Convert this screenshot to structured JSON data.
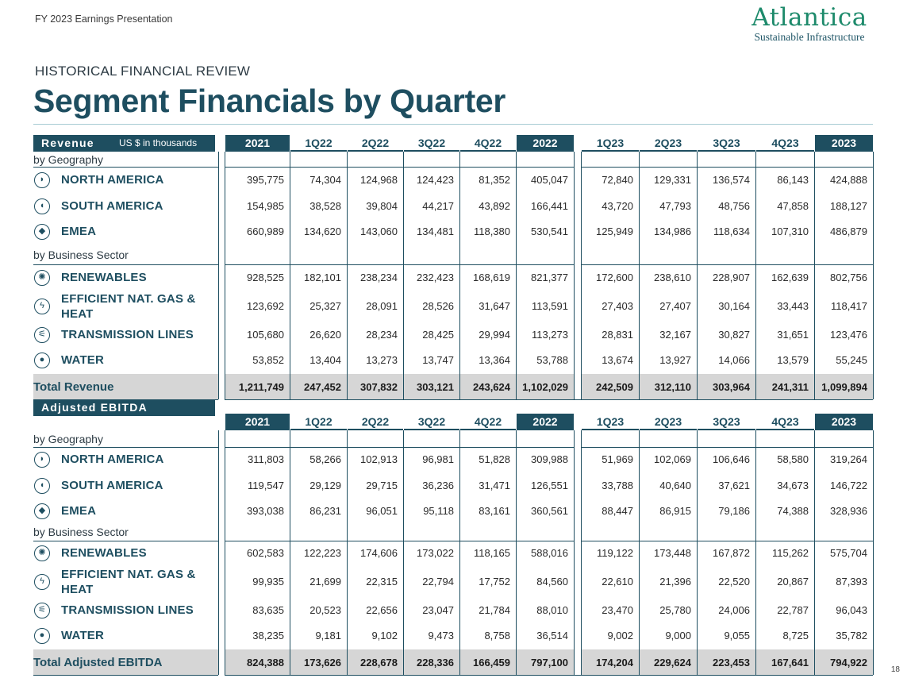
{
  "header": {
    "presentation": "FY 2023 Earnings Presentation",
    "logo_name": "Atlantica",
    "logo_tagline": "Sustainable Infrastructure",
    "subtitle": "HISTORICAL FINANCIAL REVIEW",
    "title": "Segment Financials by Quarter",
    "page_number": "18"
  },
  "columns": [
    "2021",
    "1Q22",
    "2Q22",
    "3Q22",
    "4Q22",
    "2022",
    "1Q23",
    "2Q23",
    "3Q23",
    "4Q23",
    "2023"
  ],
  "year_columns": [
    "2021",
    "2022",
    "2023"
  ],
  "sections": [
    {
      "key": "revenue",
      "title": "Revenue",
      "unit": "US $ in thousands",
      "groups": [
        {
          "label": "by Geography",
          "rows": [
            {
              "name": "NORTH AMERICA",
              "icon": "north-america-globe-icon",
              "values": [
                "395,775",
                "74,304",
                "124,968",
                "124,423",
                "81,352",
                "405,047",
                "72,840",
                "129,331",
                "136,574",
                "86,143",
                "424,888"
              ]
            },
            {
              "name": "SOUTH AMERICA",
              "icon": "south-america-globe-icon",
              "values": [
                "154,985",
                "38,528",
                "39,804",
                "44,217",
                "43,892",
                "166,441",
                "43,720",
                "47,793",
                "48,756",
                "47,858",
                "188,127"
              ]
            },
            {
              "name": "EMEA",
              "icon": "emea-globe-icon",
              "values": [
                "660,989",
                "134,620",
                "143,060",
                "134,481",
                "118,380",
                "530,541",
                "125,949",
                "134,986",
                "118,634",
                "107,310",
                "486,879"
              ]
            }
          ]
        },
        {
          "label": "by Business Sector",
          "rows": [
            {
              "name": "RENEWABLES",
              "icon": "sun-icon",
              "values": [
                "928,525",
                "182,101",
                "238,234",
                "232,423",
                "168,619",
                "821,377",
                "172,600",
                "238,610",
                "228,907",
                "162,639",
                "802,756"
              ]
            },
            {
              "name": "EFFICIENT NAT. GAS & HEAT",
              "icon": "lightning-icon",
              "values": [
                "123,692",
                "25,327",
                "28,091",
                "28,526",
                "31,647",
                "113,591",
                "27,403",
                "27,407",
                "30,164",
                "33,443",
                "118,417"
              ]
            },
            {
              "name": "TRANSMISSION LINES",
              "icon": "transmission-tower-icon",
              "values": [
                "105,680",
                "26,620",
                "28,234",
                "28,425",
                "29,994",
                "113,273",
                "28,831",
                "32,167",
                "30,827",
                "31,651",
                "123,476"
              ]
            },
            {
              "name": "WATER",
              "icon": "water-drop-icon",
              "values": [
                "53,852",
                "13,404",
                "13,273",
                "13,747",
                "13,364",
                "53,788",
                "13,674",
                "13,927",
                "14,066",
                "13,579",
                "55,245"
              ]
            }
          ]
        }
      ],
      "total": {
        "label": "Total Revenue",
        "values": [
          "1,211,749",
          "247,452",
          "307,832",
          "303,121",
          "243,624",
          "1,102,029",
          "242,509",
          "312,110",
          "303,964",
          "241,311",
          "1,099,894"
        ]
      }
    },
    {
      "key": "ebitda",
      "title": "Adjusted EBITDA",
      "unit": "",
      "groups": [
        {
          "label": "by Geography",
          "rows": [
            {
              "name": "NORTH AMERICA",
              "icon": "north-america-globe-icon",
              "values": [
                "311,803",
                "58,266",
                "102,913",
                "96,981",
                "51,828",
                "309,988",
                "51,969",
                "102,069",
                "106,646",
                "58,580",
                "319,264"
              ]
            },
            {
              "name": "SOUTH AMERICA",
              "icon": "south-america-globe-icon",
              "values": [
                "119,547",
                "29,129",
                "29,715",
                "36,236",
                "31,471",
                "126,551",
                "33,788",
                "40,640",
                "37,621",
                "34,673",
                "146,722"
              ]
            },
            {
              "name": "EMEA",
              "icon": "emea-globe-icon",
              "values": [
                "393,038",
                "86,231",
                "96,051",
                "95,118",
                "83,161",
                "360,561",
                "88,447",
                "86,915",
                "79,186",
                "74,388",
                "328,936"
              ]
            }
          ]
        },
        {
          "label": "by Business Sector",
          "rows": [
            {
              "name": "RENEWABLES",
              "icon": "sun-icon",
              "values": [
                "602,583",
                "122,223",
                "174,606",
                "173,022",
                "118,165",
                "588,016",
                "119,122",
                "173,448",
                "167,872",
                "115,262",
                "575,704"
              ]
            },
            {
              "name": "EFFICIENT NAT. GAS & HEAT",
              "icon": "lightning-icon",
              "values": [
                "99,935",
                "21,699",
                "22,315",
                "22,794",
                "17,752",
                "84,560",
                "22,610",
                "21,396",
                "22,520",
                "20,867",
                "87,393"
              ]
            },
            {
              "name": "TRANSMISSION LINES",
              "icon": "transmission-tower-icon",
              "values": [
                "83,635",
                "20,523",
                "22,656",
                "23,047",
                "21,784",
                "88,010",
                "23,470",
                "25,780",
                "24,006",
                "22,787",
                "96,043"
              ]
            },
            {
              "name": "WATER",
              "icon": "water-drop-icon",
              "values": [
                "38,235",
                "9,181",
                "9,102",
                "9,473",
                "8,758",
                "36,514",
                "9,002",
                "9,000",
                "9,055",
                "8,725",
                "35,782"
              ]
            }
          ]
        }
      ],
      "total": {
        "label": "Total Adjusted EBITDA",
        "values": [
          "824,388",
          "173,626",
          "228,678",
          "228,336",
          "166,459",
          "797,100",
          "174,204",
          "229,624",
          "223,453",
          "167,641",
          "794,922"
        ]
      }
    }
  ]
}
